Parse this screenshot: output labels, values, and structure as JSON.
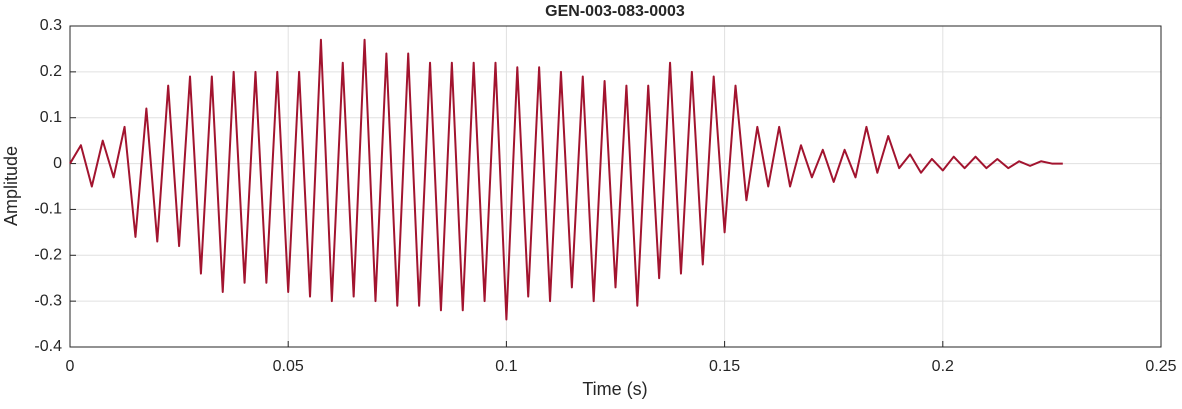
{
  "chart_data": {
    "type": "line",
    "title": "GEN-003-083-0003",
    "xlabel": "Time (s)",
    "ylabel": "Amplitude",
    "x": [
      0,
      0.0025,
      0.005,
      0.0075,
      0.01,
      0.0125,
      0.015,
      0.0175,
      0.02,
      0.0225,
      0.025,
      0.0275,
      0.03,
      0.0325,
      0.035,
      0.0375,
      0.04,
      0.0425,
      0.045,
      0.0475,
      0.05,
      0.0525,
      0.055,
      0.0575,
      0.06,
      0.0625,
      0.065,
      0.0675,
      0.07,
      0.0725,
      0.075,
      0.0775,
      0.08,
      0.0825,
      0.085,
      0.0875,
      0.09,
      0.0925,
      0.095,
      0.0975,
      0.1,
      0.1025,
      0.105,
      0.1075,
      0.11,
      0.1125,
      0.115,
      0.1175,
      0.12,
      0.1225,
      0.125,
      0.1275,
      0.13,
      0.1325,
      0.135,
      0.1375,
      0.14,
      0.1425,
      0.145,
      0.1475,
      0.15,
      0.1525,
      0.155,
      0.1575,
      0.16,
      0.1625,
      0.165,
      0.1675,
      0.17,
      0.1725,
      0.175,
      0.1775,
      0.18,
      0.1825,
      0.185,
      0.1875,
      0.19,
      0.1925,
      0.195,
      0.1975,
      0.2,
      0.2025,
      0.205,
      0.2075,
      0.21,
      0.2125,
      0.215,
      0.2175,
      0.22,
      0.2225,
      0.225,
      0.2275
    ],
    "series": [
      {
        "color": "#a2142f",
        "values": [
          0,
          0.04,
          -0.05,
          0.05,
          -0.03,
          0.08,
          -0.16,
          0.12,
          -0.17,
          0.17,
          -0.18,
          0.19,
          -0.24,
          0.19,
          -0.28,
          0.2,
          -0.26,
          0.2,
          -0.26,
          0.2,
          -0.28,
          0.2,
          -0.29,
          0.27,
          -0.3,
          0.22,
          -0.29,
          0.27,
          -0.3,
          0.24,
          -0.31,
          0.24,
          -0.31,
          0.22,
          -0.32,
          0.22,
          -0.32,
          0.22,
          -0.3,
          0.22,
          -0.34,
          0.21,
          -0.29,
          0.21,
          -0.3,
          0.2,
          -0.27,
          0.19,
          -0.3,
          0.18,
          -0.27,
          0.17,
          -0.31,
          0.17,
          -0.25,
          0.22,
          -0.24,
          0.2,
          -0.22,
          0.19,
          -0.15,
          0.17,
          -0.08,
          0.08,
          -0.05,
          0.08,
          -0.05,
          0.04,
          -0.03,
          0.03,
          -0.04,
          0.03,
          -0.03,
          0.08,
          -0.02,
          0.06,
          -0.01,
          0.02,
          -0.02,
          0.01,
          -0.015,
          0.015,
          -0.01,
          0.015,
          -0.01,
          0.01,
          -0.01,
          0.005,
          -0.005,
          0.005,
          0,
          0
        ]
      }
    ],
    "xlim": [
      0,
      0.25
    ],
    "xticks": [
      0,
      0.05,
      0.1,
      0.15,
      0.2,
      0.25
    ],
    "ylim": [
      -0.4,
      0.3
    ],
    "yticks": [
      -0.4,
      -0.3,
      -0.2,
      -0.1,
      0,
      0.1,
      0.2,
      0.3
    ],
    "grid": true
  }
}
